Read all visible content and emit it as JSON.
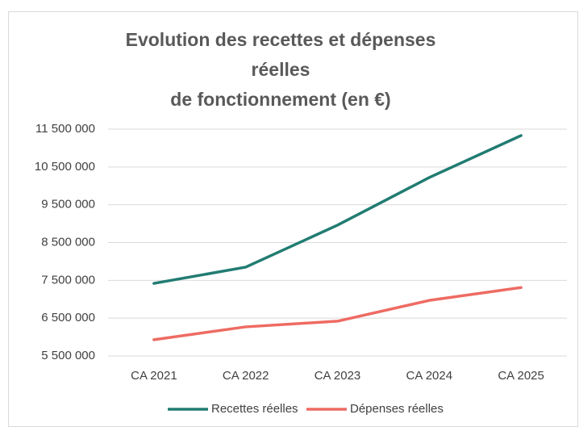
{
  "chart_data": {
    "type": "line",
    "title": [
      "Evolution des recettes et dépenses",
      "réelles",
      "de fonctionnement (en €)"
    ],
    "categories": [
      "CA 2021",
      "CA 2022",
      "CA 2023",
      "CA 2024",
      "CA 2025"
    ],
    "series": [
      {
        "name": "Recettes réelles",
        "color": "#217c72",
        "values": [
          7420000,
          7850000,
          8960000,
          10220000,
          11330000
        ]
      },
      {
        "name": "Dépenses réelles",
        "color": "#ee6b63",
        "values": [
          5930000,
          6270000,
          6420000,
          6970000,
          7310000
        ]
      }
    ],
    "ylim": [
      5500000,
      11500000
    ],
    "yticks": [
      {
        "value": 5500000,
        "label": "5 500 000"
      },
      {
        "value": 6500000,
        "label": "6 500 000"
      },
      {
        "value": 7500000,
        "label": "7 500 000"
      },
      {
        "value": 8500000,
        "label": "8 500 000"
      },
      {
        "value": 9500000,
        "label": "9 500 000"
      },
      {
        "value": 10500000,
        "label": "10 500 000"
      },
      {
        "value": 11500000,
        "label": "11 500 000"
      }
    ],
    "grid": true,
    "legend": "bottom"
  }
}
